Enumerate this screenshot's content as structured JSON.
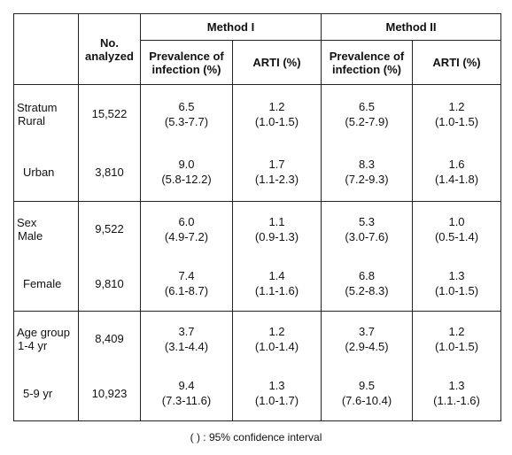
{
  "table": {
    "header": {
      "n_analyzed": "No. analyzed"
    },
    "methods": [
      {
        "name": "Method I",
        "columns": [
          "Prevalence of infection (%)",
          "ARTI (%)"
        ]
      },
      {
        "name": "Method II",
        "columns": [
          "Prevalence of infection (%)",
          "ARTI (%)"
        ]
      }
    ],
    "groups": [
      {
        "label": "Stratum",
        "rows": [
          {
            "label": "Rural",
            "n": "15,522",
            "cells": [
              [
                "6.5",
                "(5.3-7.7)"
              ],
              [
                "1.2",
                "(1.0-1.5)"
              ],
              [
                "6.5",
                "(5.2-7.9)"
              ],
              [
                "1.2",
                "(1.0-1.5)"
              ]
            ]
          },
          {
            "label": "Urban",
            "n": "3,810",
            "cells": [
              [
                "9.0",
                "(5.8-12.2)"
              ],
              [
                "1.7",
                "(1.1-2.3)"
              ],
              [
                "8.3",
                "(7.2-9.3)"
              ],
              [
                "1.6",
                "(1.4-1.8)"
              ]
            ]
          }
        ]
      },
      {
        "label": "Sex",
        "rows": [
          {
            "label": "Male",
            "n": "9,522",
            "cells": [
              [
                "6.0",
                "(4.9-7.2)"
              ],
              [
                "1.1",
                "(0.9-1.3)"
              ],
              [
                "5.3",
                "(3.0-7.6)"
              ],
              [
                "1.0",
                "(0.5-1.4)"
              ]
            ]
          },
          {
            "label": "Female",
            "n": "9,810",
            "cells": [
              [
                "7.4",
                "(6.1-8.7)"
              ],
              [
                "1.4",
                "(1.1-1.6)"
              ],
              [
                "6.8",
                "(5.2-8.3)"
              ],
              [
                "1.3",
                "(1.0-1.5)"
              ]
            ]
          }
        ]
      },
      {
        "label": "Age group",
        "rows": [
          {
            "label": "1-4 yr",
            "n": "8,409",
            "cells": [
              [
                "3.7",
                "(3.1-4.4)"
              ],
              [
                "1.2",
                "(1.0-1.4)"
              ],
              [
                "3.7",
                "(2.9-4.5)"
              ],
              [
                "1.2",
                "(1.0-1.5)"
              ]
            ]
          },
          {
            "label": "5-9 yr",
            "n": "10,923",
            "cells": [
              [
                "9.4",
                "(7.3-11.6)"
              ],
              [
                "1.3",
                "(1.0-1.7)"
              ],
              [
                "9.5",
                "(7.6-10.4)"
              ],
              [
                "1.3",
                "(1.1.-1.6)"
              ]
            ]
          }
        ]
      }
    ],
    "footnote": "( ) : 95% confidence interval"
  }
}
